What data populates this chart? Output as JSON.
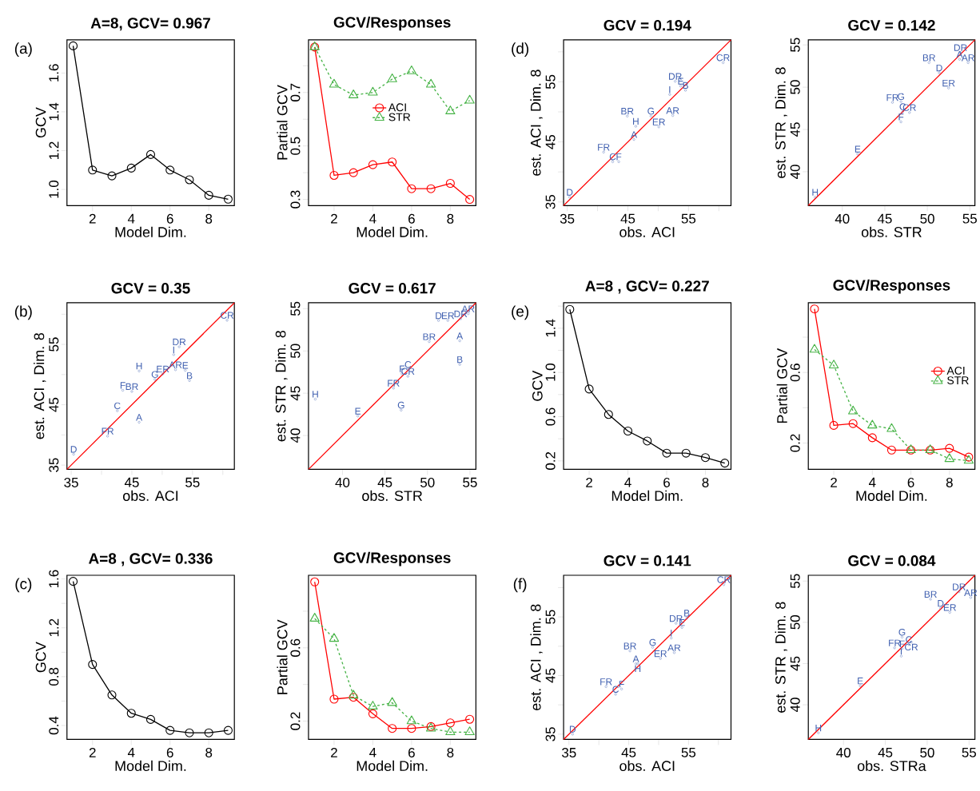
{
  "chart_data": [
    {
      "type": "line",
      "title": "A=8, GCV= 0.967",
      "xlabel": "Model Dim.",
      "ylabel": "GCV",
      "x": [
        1,
        2,
        3,
        4,
        5,
        6,
        7,
        8,
        9
      ],
      "xlim": [
        0.68,
        9.32
      ],
      "ylim": [
        0.917,
        1.771
      ],
      "xticks": [
        2,
        4,
        6,
        8
      ],
      "yticks": [
        {
          "value": 1.0,
          "label": "1.0"
        },
        1.2,
        1.4,
        1.6
      ],
      "marker": "circle",
      "annotations": [
        "(a)"
      ],
      "series": [
        {
          "color": "#000000",
          "values": [
            1.74,
            1.1,
            1.07,
            1.11,
            1.18,
            1.1,
            1.05,
            0.97,
            0.95
          ]
        }
      ]
    },
    {
      "type": "line",
      "title": "GCV/Responses",
      "xlabel": "Model Dim.",
      "ylabel": "Partial GCV",
      "x": [
        1,
        2,
        3,
        4,
        5,
        6,
        7,
        8,
        9
      ],
      "xlim": [
        0.68,
        9.32
      ],
      "ylim": [
        0.277,
        0.897
      ],
      "xticks": [
        2,
        4,
        6,
        8
      ],
      "yticks": [
        0.3,
        {
          "value": 0.4,
          "label": null
        },
        0.5,
        {
          "value": 0.6,
          "label": null
        },
        0.7,
        {
          "value": 0.8,
          "label": null
        }
      ],
      "legend": "center",
      "series": [
        {
          "name": "ACI",
          "color": "#ff0000",
          "marker": "circle",
          "line_style": "solid",
          "values": [
            0.87,
            0.39,
            0.4,
            0.43,
            0.44,
            0.34,
            0.34,
            0.36,
            0.3
          ]
        },
        {
          "name": "STR",
          "color": "#44b244",
          "marker": "triangle",
          "line_style": "dashed",
          "values": [
            0.87,
            0.73,
            0.69,
            0.7,
            0.75,
            0.78,
            0.73,
            0.63,
            0.67
          ]
        }
      ]
    },
    {
      "type": "scatter",
      "title": "GCV = 0.194",
      "xlabel": "obs. ACI",
      "ylabel": "est. ACI , Dim. 8",
      "xlim": [
        34.4,
        62.0
      ],
      "ylim": [
        34.4,
        62.0
      ],
      "xticks": [
        35,
        {
          "value": 40,
          "label": null
        },
        45,
        {
          "value": 50,
          "label": null
        },
        55,
        {
          "value": 60,
          "label": null
        }
      ],
      "yticks": [
        35,
        {
          "value": 40,
          "label": null
        },
        45,
        {
          "value": 50,
          "label": null
        },
        55,
        {
          "value": 60,
          "label": null
        }
      ],
      "annotations": [
        "(d)"
      ],
      "series": [
        {
          "type": "line",
          "color": "#ff0000",
          "x": [
            34.4,
            62.0
          ],
          "values": [
            34.4,
            62.0
          ]
        },
        {
          "color": "#4060b0",
          "marker": "circle",
          "x": [
            35.4,
            41.0,
            42.5,
            43.5,
            46.0,
            46.3,
            44.9,
            48.8,
            50.1,
            52.4,
            51.9,
            52.8,
            53.7,
            54.5,
            60.7
          ],
          "values": [
            35.8,
            43.3,
            41.7,
            41.7,
            45.4,
            47.6,
            49.3,
            49.3,
            47.5,
            49.4,
            52.9,
            55.1,
            54.3,
            53.6,
            58.2
          ],
          "value_labels": [
            "D",
            "FR",
            "C",
            "F",
            "A",
            "H",
            "BR",
            "G",
            "ER",
            "AR",
            "I",
            "DR",
            "E",
            "B",
            "CR"
          ]
        }
      ]
    },
    {
      "type": "scatter",
      "title": "GCV = 0.142",
      "xlabel": "obs. STR",
      "ylabel": "est. STR , Dim. 8",
      "xlim": [
        36.0,
        55.6
      ],
      "ylim": [
        36.0,
        55.6
      ],
      "xticks": [
        40,
        45,
        50,
        55
      ],
      "yticks": [
        40,
        45,
        50,
        55
      ],
      "series": [
        {
          "type": "line",
          "color": "#ff0000",
          "x": [
            36.0,
            55.6
          ],
          "values": [
            36.0,
            55.6
          ]
        },
        {
          "color": "#4060b0",
          "marker": "circle",
          "x": [
            36.8,
            41.8,
            46.9,
            45.9,
            46.9,
            47.1,
            47.9,
            52.5,
            51.4,
            50.2,
            53.9,
            53.8,
            54.8
          ],
          "values": [
            37.0,
            42.1,
            45.9,
            48.2,
            48.3,
            47.1,
            47.0,
            49.9,
            51.7,
            52.9,
            54.1,
            53.3,
            52.9
          ],
          "value_labels": [
            "H",
            "E",
            "F",
            "FR",
            "G",
            "C",
            "CR",
            "ER",
            "D",
            "BR",
            "DR",
            "A",
            "AR"
          ]
        }
      ]
    },
    {
      "type": "scatter",
      "title": "GCV = 0.35",
      "xlabel": "obs. ACI",
      "ylabel": "est. ACI , Dim. 8",
      "xlim": [
        34.3,
        61.9
      ],
      "ylim": [
        34.3,
        61.9
      ],
      "xticks": [
        35,
        {
          "value": 40,
          "label": null
        },
        45,
        {
          "value": 50,
          "label": null
        },
        55,
        {
          "value": 60,
          "label": null
        }
      ],
      "yticks": [
        35,
        {
          "value": 40,
          "label": null
        },
        45,
        {
          "value": 50,
          "label": null
        },
        55,
        {
          "value": 60,
          "label": null
        }
      ],
      "annotations": [
        "(b)"
      ],
      "series": [
        {
          "type": "line",
          "color": "#ff0000",
          "x": [
            34.3,
            61.9
          ],
          "values": [
            34.3,
            61.9
          ]
        },
        {
          "color": "#4060b0",
          "marker": "circle",
          "x": [
            35.4,
            41.0,
            42.6,
            46.2,
            43.5,
            45.0,
            46.2,
            48.8,
            50.1,
            52.2,
            53.8,
            54.5,
            51.9,
            52.8,
            60.7
          ],
          "values": [
            36.8,
            39.8,
            44.0,
            42.1,
            47.4,
            47.2,
            50.6,
            49.2,
            50.1,
            50.8,
            50.7,
            49.0,
            53.3,
            54.6,
            59.0
          ],
          "value_labels": [
            "D",
            "FR",
            "C",
            "A",
            "F",
            "BR",
            "H",
            "G",
            "ER",
            "AR",
            "E",
            "B",
            "I",
            "DR",
            "CR"
          ]
        }
      ]
    },
    {
      "type": "scatter",
      "title": "GCV = 0.617",
      "xlabel": "obs. STR",
      "ylabel": "est. STR , Dim. 8",
      "xlim": [
        36.0,
        55.7
      ],
      "ylim": [
        36.0,
        55.7
      ],
      "xticks": [
        40,
        45,
        50,
        55
      ],
      "yticks": [
        40,
        45,
        50,
        55
      ],
      "series": [
        {
          "type": "line",
          "color": "#ff0000",
          "x": [
            36.0,
            55.7
          ],
          "values": [
            36.0,
            55.7
          ]
        },
        {
          "color": "#4060b0",
          "marker": "circle",
          "x": [
            36.8,
            41.8,
            46.9,
            46.0,
            47.0,
            47.7,
            47.7,
            50.2,
            51.3,
            52.4,
            53.9,
            54.8,
            53.8,
            53.8
          ],
          "values": [
            44.3,
            42.3,
            43.0,
            45.6,
            47.3,
            47.8,
            47.0,
            51.1,
            53.6,
            53.6,
            53.8,
            54.4,
            51.2,
            48.4
          ],
          "value_labels": [
            "H",
            "E",
            "G",
            "FR",
            "F",
            "C",
            "CR",
            "BR",
            "D",
            "ER",
            "DR",
            "AR",
            "A",
            "B"
          ]
        }
      ]
    },
    {
      "type": "line",
      "title": "A=8 , GCV= 0.227",
      "xlabel": "Model Dim.",
      "ylabel": "GCV",
      "x": [
        1,
        2,
        3,
        4,
        5,
        6,
        7,
        8,
        9
      ],
      "xlim": [
        0.68,
        9.32
      ],
      "ylim": [
        0.124,
        1.63
      ],
      "xticks": [
        2,
        4,
        6,
        8
      ],
      "yticks": [
        0.2,
        {
          "value": 0.4,
          "label": null
        },
        0.6,
        {
          "value": 0.8,
          "label": null
        },
        {
          "value": 1.0,
          "label": "1.0"
        },
        {
          "value": 1.2,
          "label": null
        },
        1.4,
        {
          "value": 1.6,
          "label": null
        }
      ],
      "marker": "circle",
      "annotations": [
        "(e)"
      ],
      "series": [
        {
          "color": "#000000",
          "values": [
            1.57,
            0.85,
            0.62,
            0.47,
            0.38,
            0.27,
            0.27,
            0.23,
            0.18
          ]
        }
      ]
    },
    {
      "type": "line",
      "title": "GCV/Responses",
      "xlabel": "Model Dim.",
      "ylabel": "Partial GCV",
      "x": [
        1,
        2,
        3,
        4,
        5,
        6,
        7,
        8,
        9
      ],
      "xlim": [
        0.68,
        9.32
      ],
      "ylim": [
        0.051,
        0.995
      ],
      "xticks": [
        2,
        4,
        6,
        8
      ],
      "yticks": [
        0.2,
        {
          "value": 0.4,
          "label": null
        },
        0.6,
        {
          "value": 0.8,
          "label": null
        }
      ],
      "legend": "center right",
      "series": [
        {
          "name": "ACI",
          "color": "#ff0000",
          "marker": "circle",
          "line_style": "solid",
          "values": [
            0.96,
            0.3,
            0.31,
            0.23,
            0.16,
            0.16,
            0.16,
            0.17,
            0.12
          ]
        },
        {
          "name": "STR",
          "color": "#44b244",
          "marker": "triangle",
          "line_style": "dashed",
          "values": [
            0.73,
            0.64,
            0.38,
            0.3,
            0.28,
            0.16,
            0.16,
            0.11,
            0.1
          ]
        }
      ]
    },
    {
      "type": "line",
      "title": "A=8 , GCV= 0.336",
      "xlabel": "Model Dim.",
      "ylabel": "GCV",
      "x": [
        1,
        2,
        3,
        4,
        5,
        6,
        7,
        8,
        9
      ],
      "xlim": [
        0.68,
        9.32
      ],
      "ylim": [
        0.286,
        1.63
      ],
      "xticks": [
        2,
        4,
        6,
        8
      ],
      "yticks": [
        0.4,
        {
          "value": 0.6,
          "label": null
        },
        0.8,
        {
          "value": 1.0,
          "label": null
        },
        1.2,
        {
          "value": 1.4,
          "label": null
        },
        1.6
      ],
      "marker": "circle",
      "annotations": [
        "(c)"
      ],
      "series": [
        {
          "color": "#000000",
          "values": [
            1.58,
            0.9,
            0.65,
            0.5,
            0.45,
            0.36,
            0.34,
            0.34,
            0.36
          ]
        }
      ]
    },
    {
      "type": "line",
      "title": "GCV/Responses",
      "xlabel": "Model Dim.",
      "ylabel": "Partial GCV",
      "x": [
        1,
        2,
        3,
        4,
        5,
        6,
        7,
        8,
        9
      ],
      "xlim": [
        0.68,
        9.32
      ],
      "ylim": [
        0.1,
        0.996
      ],
      "xticks": [
        2,
        4,
        6,
        8
      ],
      "yticks": [
        0.2,
        {
          "value": 0.4,
          "label": null
        },
        0.6,
        {
          "value": 0.8,
          "label": null
        }
      ],
      "series": [
        {
          "color": "#ff0000",
          "marker": "circle",
          "line_style": "solid",
          "values": [
            0.96,
            0.32,
            0.33,
            0.24,
            0.16,
            0.16,
            0.17,
            0.19,
            0.21
          ]
        },
        {
          "color": "#44b244",
          "marker": "triangle",
          "line_style": "dashed",
          "values": [
            0.76,
            0.65,
            0.34,
            0.28,
            0.3,
            0.2,
            0.16,
            0.14,
            0.14
          ]
        }
      ]
    },
    {
      "type": "scatter",
      "title": "GCV = 0.141",
      "xlabel": "obs. ACI",
      "ylabel": "est. ACI , Dim. 8",
      "xlim": [
        34.1,
        62.1
      ],
      "ylim": [
        34.1,
        62.1
      ],
      "xticks": [
        35,
        {
          "value": 40,
          "label": null
        },
        45,
        {
          "value": 50,
          "label": null
        },
        55,
        {
          "value": 60,
          "label": null
        }
      ],
      "yticks": [
        35,
        {
          "value": 40,
          "label": null
        },
        45,
        {
          "value": 50,
          "label": null
        },
        55,
        {
          "value": 60,
          "label": null
        }
      ],
      "annotations": [
        "(f)"
      ],
      "series": [
        {
          "type": "line",
          "color": "#ff0000",
          "x": [
            34.1,
            62.1
          ],
          "values": [
            34.1,
            62.1
          ]
        },
        {
          "color": "#4060b0",
          "marker": "circle",
          "x": [
            35.6,
            41.2,
            42.8,
            43.8,
            45.2,
            46.2,
            46.5,
            49.0,
            50.3,
            52.6,
            52.1,
            52.9,
            53.9,
            54.7,
            60.9
          ],
          "values": [
            35.0,
            43.1,
            41.8,
            42.7,
            49.2,
            47.0,
            47.0,
            49.8,
            47.9,
            48.9,
            51.4,
            53.9,
            53.2,
            54.8,
            60.5
          ],
          "value_labels": [
            "D",
            "FR",
            "C",
            "F",
            "BR",
            "A",
            "H",
            "G",
            "ER",
            "AR",
            "I",
            "DR",
            "E",
            "B",
            "CR"
          ]
        }
      ]
    },
    {
      "type": "scatter",
      "title": "GCV = 0.084",
      "xlabel": "obs. STRa",
      "ylabel": "est. STR , Dim. 8",
      "xlim": [
        35.8,
        55.7
      ],
      "ylim": [
        35.8,
        55.7
      ],
      "xticks": [
        40,
        45,
        50,
        55
      ],
      "yticks": [
        40,
        45,
        50,
        55
      ],
      "series": [
        {
          "type": "line",
          "color": "#ff0000",
          "x": [
            35.8,
            55.7
          ],
          "values": [
            35.8,
            55.7
          ]
        },
        {
          "color": "#4060b0",
          "marker": "circle",
          "x": [
            37.0,
            42.0,
            46.9,
            46.1,
            47.0,
            47.0,
            47.8,
            48.1,
            50.4,
            51.6,
            52.7,
            53.8,
            55.2
          ],
          "values": [
            36.6,
            42.3,
            45.9,
            46.9,
            46.8,
            48.2,
            47.3,
            47.6,
            52.8,
            51.7,
            51.2,
            53.7,
            53.0
          ],
          "value_labels": [
            "H",
            "E",
            "I",
            "FR",
            "F",
            "G",
            "C",
            "CR",
            "BR",
            "D",
            "ER",
            "DR",
            "AR"
          ]
        }
      ]
    }
  ]
}
